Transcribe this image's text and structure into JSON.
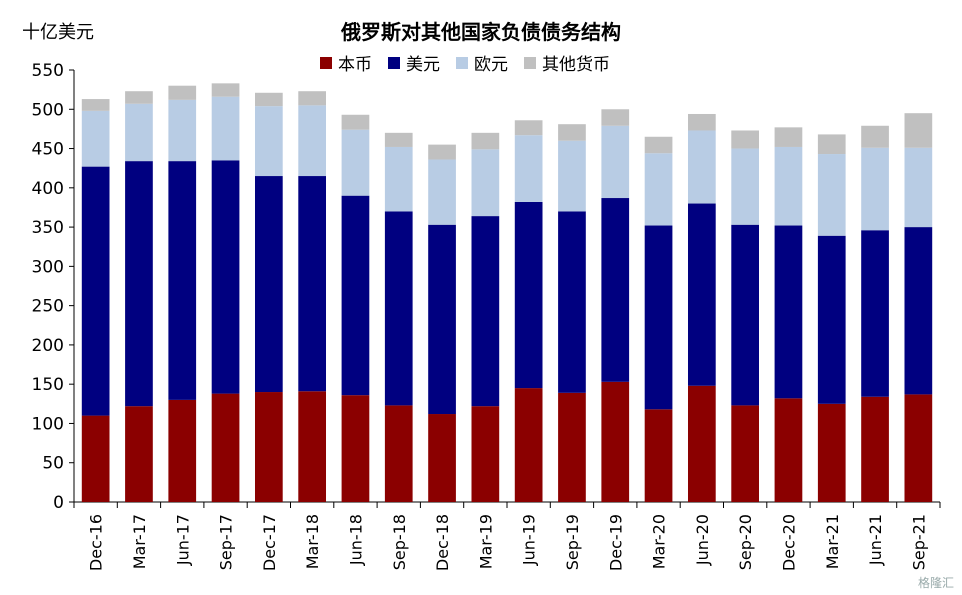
{
  "chart_data": {
    "type": "bar",
    "stacked": true,
    "title": "俄罗斯对其他国家负债债务结构",
    "unit_label": "十亿美元",
    "ylim": [
      0,
      550
    ],
    "yticks": [
      0,
      50,
      100,
      150,
      200,
      250,
      300,
      350,
      400,
      450,
      500,
      550
    ],
    "legend_position": "top-center",
    "categories": [
      "Dec-16",
      "Mar-17",
      "Jun-17",
      "Sep-17",
      "Dec-17",
      "Mar-18",
      "Jun-18",
      "Sep-18",
      "Dec-18",
      "Mar-19",
      "Jun-19",
      "Sep-19",
      "Dec-19",
      "Mar-20",
      "Jun-20",
      "Sep-20",
      "Dec-20",
      "Mar-21",
      "Jun-21",
      "Sep-21"
    ],
    "series": [
      {
        "name": "本币",
        "color": "#8b0000",
        "values": [
          110,
          122,
          130,
          138,
          140,
          141,
          136,
          123,
          112,
          122,
          145,
          139,
          153,
          118,
          148,
          123,
          132,
          125,
          134,
          137
        ]
      },
      {
        "name": "美元",
        "color": "#000080",
        "values": [
          317,
          312,
          304,
          297,
          275,
          274,
          254,
          247,
          241,
          242,
          237,
          231,
          234,
          234,
          232,
          230,
          220,
          214,
          212,
          213
        ]
      },
      {
        "name": "欧元",
        "color": "#b8cce4",
        "values": [
          71,
          73,
          78,
          81,
          89,
          90,
          84,
          82,
          83,
          85,
          85,
          90,
          92,
          92,
          93,
          97,
          100,
          104,
          105,
          101
        ]
      },
      {
        "name": "其他货币",
        "color": "#c0c0c0",
        "values": [
          15,
          16,
          18,
          17,
          17,
          18,
          19,
          18,
          19,
          21,
          19,
          21,
          21,
          21,
          21,
          23,
          25,
          25,
          28,
          44
        ]
      }
    ]
  },
  "watermark": "格隆汇"
}
